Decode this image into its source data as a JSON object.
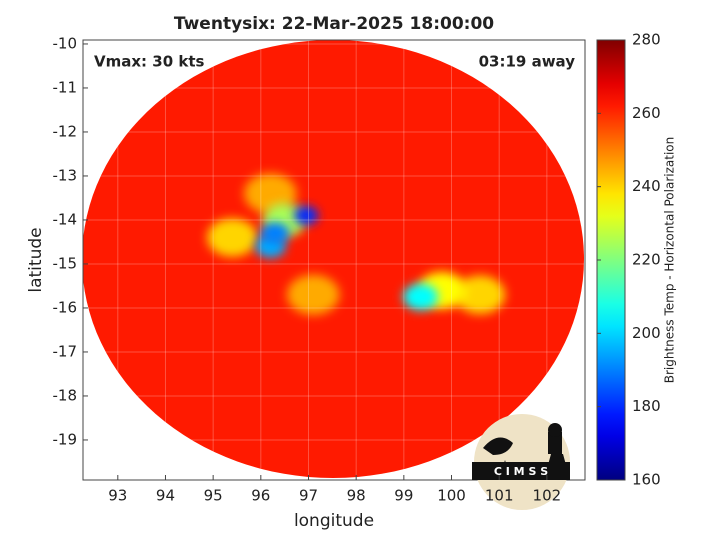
{
  "chart_data": {
    "type": "heatmap",
    "title": "Twentysix: 22-Mar-2025 18:00:00",
    "annotations": [
      "Vmax: 30 kts",
      "03:19 away"
    ],
    "x_label": "longitude",
    "y_label": "latitude",
    "xlim": [
      92.27,
      102.8
    ],
    "ylim": [
      -19.91,
      -9.91
    ],
    "xticks": [
      93,
      94,
      95,
      96,
      97,
      98,
      99,
      100,
      101,
      102
    ],
    "yticks": [
      -10,
      -11,
      -12,
      -13,
      -14,
      -15,
      -16,
      -17,
      -18,
      -19
    ],
    "grid": true,
    "colorbar": {
      "label": "Brightness Temp - Horizontal Polarization",
      "lim": [
        160,
        280
      ],
      "ticks": [
        160,
        180,
        200,
        220,
        240,
        260,
        280
      ],
      "colormap": "jet"
    },
    "field_value": 262,
    "points": {
      "x": [
        95.4,
        96.2,
        97.1,
        100.6,
        99.8,
        96.5,
        96.2,
        96.3,
        96.95,
        99.35
      ],
      "y": [
        -14.4,
        -13.4,
        -15.7,
        -15.7,
        -15.6,
        -14.0,
        -14.6,
        -14.3,
        -13.9,
        -15.75
      ],
      "values": [
        240,
        245,
        245,
        240,
        235,
        225,
        195,
        190,
        180,
        205
      ]
    },
    "logo": "C I M S S"
  }
}
